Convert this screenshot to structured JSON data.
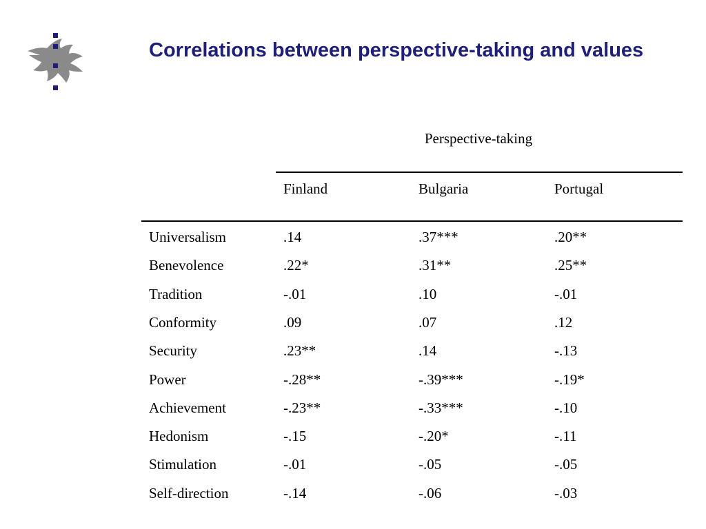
{
  "slide": {
    "title": "Correlations between perspective-taking and values"
  },
  "logo": {
    "icon": "flame-icon",
    "color": "#8a8a8a",
    "dot_color": "#1f1f7a"
  },
  "table": {
    "group_header": "Perspective-taking",
    "columns": [
      "Finland",
      "Bulgaria",
      "Portugal"
    ],
    "rows": [
      {
        "label": "Universalism",
        "values": [
          ".14",
          ".37***",
          ".20**"
        ]
      },
      {
        "label": "Benevolence",
        "values": [
          ".22*",
          ".31**",
          ".25**"
        ]
      },
      {
        "label": "Tradition",
        "values": [
          "-.01",
          ".10",
          "-.01"
        ]
      },
      {
        "label": "Conformity",
        "values": [
          ".09",
          ".07",
          ".12"
        ]
      },
      {
        "label": "Security",
        "values": [
          ".23**",
          ".14",
          "-.13"
        ]
      },
      {
        "label": "Power",
        "values": [
          "-.28**",
          "-.39***",
          "-.19*"
        ]
      },
      {
        "label": "Achievement",
        "values": [
          "-.23**",
          "-.33***",
          "-.10"
        ]
      },
      {
        "label": "Hedonism",
        "values": [
          "-.15",
          "-.20*",
          "-.11"
        ]
      },
      {
        "label": "Stimulation",
        "values": [
          "-.01",
          "-.05",
          "-.05"
        ]
      },
      {
        "label": "Self-direction",
        "values": [
          "-.14",
          "-.06",
          "-.03"
        ]
      }
    ]
  }
}
